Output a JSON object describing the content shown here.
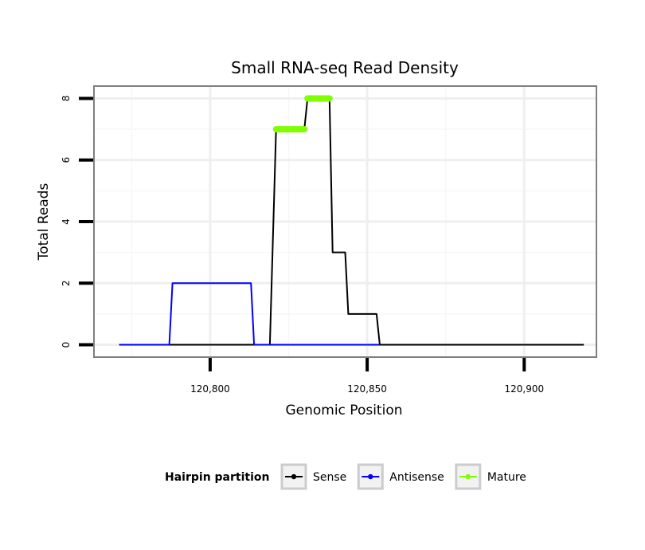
{
  "chart_data": {
    "type": "line",
    "title": "Small RNA-seq Read Density",
    "xlabel": "Genomic Position",
    "ylabel": "Total Reads",
    "xlim": [
      120763,
      120923
    ],
    "ylim": [
      -0.4,
      8.4
    ],
    "x_ticks": [
      120800,
      120850,
      120900
    ],
    "x_tick_labels": [
      "120,800",
      "120,850",
      "120,900"
    ],
    "x_minor_grid": [
      120775,
      120825,
      120875
    ],
    "y_ticks": [
      0,
      2,
      4,
      6,
      8
    ],
    "y_tick_labels": [
      "0",
      "2",
      "4",
      "6",
      "8"
    ],
    "y_minor_grid": [
      1,
      3,
      5,
      7
    ],
    "grid": true,
    "legend": {
      "title": "Hairpin partition",
      "position": "bottom",
      "entries": [
        "Sense",
        "Antisense",
        "Mature"
      ]
    },
    "series": [
      {
        "name": "Sense",
        "color": "#000000",
        "x": [
          120771,
          120819,
          120821,
          120830,
          120831,
          120838,
          120839,
          120843,
          120844,
          120853,
          120854,
          120919
        ],
        "y": [
          0,
          0,
          7,
          7,
          8,
          8,
          3,
          3,
          1,
          1,
          0,
          0
        ]
      },
      {
        "name": "Antisense",
        "color": "#0000ff",
        "x": [
          120771,
          120787,
          120788,
          120813,
          120814,
          120854
        ],
        "y": [
          0,
          0,
          2,
          2,
          0,
          0
        ]
      },
      {
        "name": "Mature",
        "color": "#7fff00",
        "segments": [
          {
            "x": [
              120821,
              120830
            ],
            "y": [
              7,
              7
            ]
          },
          {
            "x": [
              120831,
              120838
            ],
            "y": [
              8,
              8
            ]
          }
        ]
      }
    ]
  }
}
